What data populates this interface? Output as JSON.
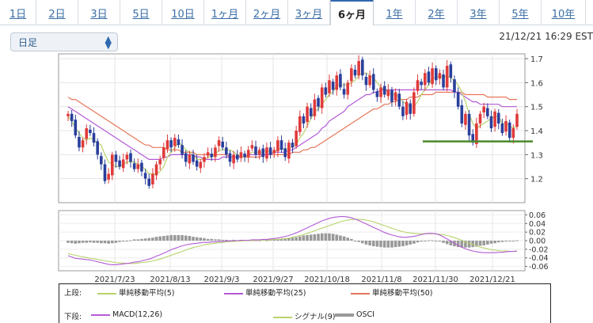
{
  "tabs": [
    {
      "label": "1日"
    },
    {
      "label": "2日"
    },
    {
      "label": "3日"
    },
    {
      "label": "5日"
    },
    {
      "label": "10日"
    },
    {
      "label": "1ヶ月"
    },
    {
      "label": "2ヶ月"
    },
    {
      "label": "3ヶ月"
    },
    {
      "label": "6ヶ月",
      "active": true
    },
    {
      "label": "1年"
    },
    {
      "label": "2年"
    },
    {
      "label": "3年"
    },
    {
      "label": "5年"
    },
    {
      "label": "10年"
    }
  ],
  "select": {
    "value": "日足"
  },
  "timestamp": "21/12/21 16:29 EST",
  "colors": {
    "up": "#e03a3a",
    "down": "#2a3f9c",
    "sma5": "#b7d36a",
    "sma25": "#b35ad6",
    "sma50": "#e6765a",
    "macd": "#b35ad6",
    "signal": "#b7d36a",
    "osci": "#999999",
    "support": "#4a8a2a"
  },
  "chart_data": [
    {
      "type": "candlestick",
      "x_labels": [
        "2021/7/23",
        "2021/8/13",
        "2021/9/3",
        "2021/9/27",
        "2021/10/18",
        "2021/11/8",
        "2021/11/30",
        "2021/12/21"
      ],
      "ylim": [
        1.1,
        1.72
      ],
      "yticks": [
        "1.7",
        "1.6",
        "1.5",
        "1.4",
        "1.3",
        "1.2"
      ],
      "grid": true,
      "support_line": 1.355,
      "closes": [
        1.47,
        1.44,
        1.38,
        1.33,
        1.36,
        1.41,
        1.39,
        1.35,
        1.3,
        1.26,
        1.19,
        1.22,
        1.3,
        1.27,
        1.25,
        1.28,
        1.3,
        1.27,
        1.24,
        1.26,
        1.23,
        1.2,
        1.17,
        1.22,
        1.26,
        1.28,
        1.33,
        1.36,
        1.33,
        1.37,
        1.34,
        1.3,
        1.27,
        1.3,
        1.27,
        1.25,
        1.27,
        1.29,
        1.31,
        1.29,
        1.33,
        1.36,
        1.33,
        1.3,
        1.27,
        1.3,
        1.28,
        1.31,
        1.29,
        1.32,
        1.34,
        1.3,
        1.32,
        1.29,
        1.33,
        1.3,
        1.32,
        1.36,
        1.32,
        1.29,
        1.35,
        1.33,
        1.4,
        1.46,
        1.43,
        1.5,
        1.46,
        1.53,
        1.5,
        1.58,
        1.55,
        1.61,
        1.57,
        1.63,
        1.58,
        1.55,
        1.6,
        1.66,
        1.63,
        1.69,
        1.63,
        1.59,
        1.63,
        1.57,
        1.54,
        1.58,
        1.55,
        1.57,
        1.52,
        1.56,
        1.5,
        1.46,
        1.52,
        1.47,
        1.56,
        1.61,
        1.59,
        1.64,
        1.6,
        1.66,
        1.61,
        1.64,
        1.58,
        1.67,
        1.62,
        1.56,
        1.5,
        1.43,
        1.47,
        1.38,
        1.35,
        1.43,
        1.47,
        1.5,
        1.46,
        1.41,
        1.48,
        1.43,
        1.39,
        1.44,
        1.37,
        1.41,
        1.47
      ],
      "sma5": [
        1.46,
        1.44,
        1.41,
        1.39,
        1.37,
        1.36,
        1.37,
        1.36,
        1.35,
        1.34,
        1.3,
        1.27,
        1.26,
        1.25,
        1.25,
        1.26,
        1.27,
        1.27,
        1.27,
        1.26,
        1.25,
        1.24,
        1.22,
        1.22,
        1.22,
        1.23,
        1.25,
        1.29,
        1.31,
        1.33,
        1.35,
        1.34,
        1.32,
        1.31,
        1.3,
        1.28,
        1.28,
        1.28,
        1.29,
        1.29,
        1.3,
        1.32,
        1.32,
        1.32,
        1.32,
        1.31,
        1.3,
        1.29,
        1.29,
        1.3,
        1.31,
        1.31,
        1.31,
        1.31,
        1.32,
        1.31,
        1.31,
        1.32,
        1.33,
        1.32,
        1.33,
        1.33,
        1.34,
        1.37,
        1.39,
        1.42,
        1.45,
        1.48,
        1.49,
        1.51,
        1.53,
        1.55,
        1.56,
        1.59,
        1.59,
        1.59,
        1.59,
        1.6,
        1.61,
        1.63,
        1.64,
        1.64,
        1.63,
        1.62,
        1.6,
        1.58,
        1.57,
        1.56,
        1.55,
        1.55,
        1.54,
        1.52,
        1.51,
        1.5,
        1.5,
        1.52,
        1.55,
        1.57,
        1.59,
        1.62,
        1.62,
        1.63,
        1.62,
        1.63,
        1.62,
        1.61,
        1.59,
        1.56,
        1.52,
        1.47,
        1.43,
        1.41,
        1.42,
        1.43,
        1.44,
        1.45,
        1.46,
        1.46,
        1.43,
        1.43,
        1.42,
        1.41,
        1.42
      ],
      "sma25": [
        1.5,
        1.49,
        1.48,
        1.47,
        1.46,
        1.45,
        1.44,
        1.43,
        1.42,
        1.41,
        1.4,
        1.39,
        1.38,
        1.37,
        1.36,
        1.35,
        1.34,
        1.33,
        1.32,
        1.31,
        1.3,
        1.29,
        1.28,
        1.28,
        1.28,
        1.28,
        1.29,
        1.29,
        1.3,
        1.3,
        1.3,
        1.3,
        1.3,
        1.3,
        1.3,
        1.29,
        1.29,
        1.28,
        1.28,
        1.28,
        1.28,
        1.28,
        1.29,
        1.29,
        1.29,
        1.29,
        1.29,
        1.29,
        1.29,
        1.3,
        1.3,
        1.3,
        1.3,
        1.3,
        1.3,
        1.3,
        1.31,
        1.31,
        1.31,
        1.31,
        1.32,
        1.32,
        1.33,
        1.34,
        1.35,
        1.36,
        1.37,
        1.38,
        1.39,
        1.41,
        1.42,
        1.44,
        1.45,
        1.46,
        1.47,
        1.48,
        1.5,
        1.51,
        1.52,
        1.53,
        1.54,
        1.55,
        1.55,
        1.56,
        1.56,
        1.57,
        1.57,
        1.57,
        1.57,
        1.57,
        1.57,
        1.57,
        1.57,
        1.57,
        1.57,
        1.57,
        1.57,
        1.57,
        1.57,
        1.57,
        1.57,
        1.57,
        1.57,
        1.57,
        1.57,
        1.56,
        1.56,
        1.55,
        1.54,
        1.53,
        1.52,
        1.52,
        1.51,
        1.51,
        1.51,
        1.51,
        1.51,
        1.51,
        1.5,
        1.5,
        1.5,
        1.5,
        1.5
      ],
      "sma50": [
        1.54,
        1.53,
        1.53,
        1.52,
        1.51,
        1.5,
        1.49,
        1.48,
        1.47,
        1.46,
        1.45,
        1.44,
        1.43,
        1.42,
        1.41,
        1.4,
        1.39,
        1.38,
        1.37,
        1.36,
        1.35,
        1.34,
        1.34,
        1.33,
        1.33,
        1.33,
        1.33,
        1.32,
        1.32,
        1.32,
        1.32,
        1.31,
        1.31,
        1.31,
        1.31,
        1.3,
        1.3,
        1.3,
        1.3,
        1.3,
        1.3,
        1.3,
        1.3,
        1.3,
        1.29,
        1.29,
        1.29,
        1.29,
        1.29,
        1.29,
        1.29,
        1.29,
        1.29,
        1.3,
        1.3,
        1.3,
        1.3,
        1.3,
        1.3,
        1.3,
        1.3,
        1.31,
        1.31,
        1.31,
        1.32,
        1.32,
        1.33,
        1.33,
        1.34,
        1.35,
        1.36,
        1.37,
        1.38,
        1.39,
        1.4,
        1.41,
        1.42,
        1.43,
        1.44,
        1.45,
        1.46,
        1.47,
        1.48,
        1.49,
        1.49,
        1.5,
        1.51,
        1.51,
        1.52,
        1.52,
        1.53,
        1.53,
        1.53,
        1.54,
        1.54,
        1.54,
        1.55,
        1.55,
        1.55,
        1.55,
        1.56,
        1.56,
        1.56,
        1.56,
        1.56,
        1.56,
        1.56,
        1.56,
        1.55,
        1.55,
        1.55,
        1.55,
        1.55,
        1.55,
        1.54,
        1.54,
        1.54,
        1.54,
        1.54,
        1.54,
        1.53,
        1.53,
        1.53
      ]
    },
    {
      "type": "macd",
      "ylim": [
        -0.07,
        0.07
      ],
      "yticks": [
        "0.06",
        "0.04",
        "0.02",
        "0.00",
        "-0.02",
        "-0.04",
        "-0.06"
      ],
      "macd": [
        -0.035,
        -0.038,
        -0.041,
        -0.042,
        -0.043,
        -0.044,
        -0.045,
        -0.047,
        -0.049,
        -0.051,
        -0.053,
        -0.055,
        -0.056,
        -0.056,
        -0.055,
        -0.054,
        -0.053,
        -0.052,
        -0.05,
        -0.049,
        -0.047,
        -0.045,
        -0.043,
        -0.04,
        -0.036,
        -0.033,
        -0.029,
        -0.025,
        -0.021,
        -0.018,
        -0.015,
        -0.012,
        -0.01,
        -0.008,
        -0.007,
        -0.006,
        -0.005,
        -0.004,
        -0.004,
        -0.003,
        -0.003,
        -0.002,
        -0.002,
        -0.001,
        -0.001,
        0.0,
        0.0,
        0.001,
        0.001,
        0.001,
        0.002,
        0.002,
        0.002,
        0.003,
        0.003,
        0.004,
        0.005,
        0.006,
        0.008,
        0.01,
        0.012,
        0.015,
        0.018,
        0.022,
        0.026,
        0.03,
        0.034,
        0.038,
        0.042,
        0.046,
        0.049,
        0.052,
        0.054,
        0.055,
        0.056,
        0.056,
        0.055,
        0.053,
        0.05,
        0.047,
        0.043,
        0.039,
        0.035,
        0.031,
        0.027,
        0.023,
        0.019,
        0.016,
        0.013,
        0.011,
        0.009,
        0.008,
        0.008,
        0.009,
        0.01,
        0.012,
        0.014,
        0.016,
        0.017,
        0.017,
        0.016,
        0.013,
        0.009,
        0.004,
        -0.001,
        -0.006,
        -0.011,
        -0.015,
        -0.019,
        -0.022,
        -0.024,
        -0.026,
        -0.027,
        -0.028,
        -0.028,
        -0.028,
        -0.028,
        -0.027,
        -0.027,
        -0.026,
        -0.025,
        -0.025,
        -0.024
      ],
      "signal": [
        -0.03,
        -0.032,
        -0.034,
        -0.036,
        -0.038,
        -0.039,
        -0.041,
        -0.042,
        -0.044,
        -0.045,
        -0.047,
        -0.048,
        -0.05,
        -0.051,
        -0.052,
        -0.052,
        -0.053,
        -0.053,
        -0.053,
        -0.052,
        -0.051,
        -0.05,
        -0.049,
        -0.047,
        -0.045,
        -0.043,
        -0.04,
        -0.037,
        -0.034,
        -0.031,
        -0.028,
        -0.025,
        -0.022,
        -0.019,
        -0.016,
        -0.014,
        -0.012,
        -0.01,
        -0.008,
        -0.007,
        -0.006,
        -0.005,
        -0.004,
        -0.003,
        -0.002,
        -0.002,
        -0.001,
        -0.001,
        0.0,
        0.0,
        0.0,
        0.001,
        0.001,
        0.001,
        0.002,
        0.002,
        0.003,
        0.003,
        0.004,
        0.005,
        0.006,
        0.008,
        0.01,
        0.012,
        0.014,
        0.017,
        0.02,
        0.023,
        0.026,
        0.029,
        0.032,
        0.035,
        0.038,
        0.041,
        0.044,
        0.046,
        0.048,
        0.049,
        0.05,
        0.05,
        0.049,
        0.048,
        0.046,
        0.044,
        0.041,
        0.038,
        0.035,
        0.032,
        0.029,
        0.026,
        0.023,
        0.021,
        0.019,
        0.018,
        0.017,
        0.016,
        0.016,
        0.016,
        0.016,
        0.016,
        0.016,
        0.015,
        0.014,
        0.012,
        0.01,
        0.007,
        0.004,
        0.001,
        -0.003,
        -0.006,
        -0.009,
        -0.012,
        -0.015,
        -0.017,
        -0.019,
        -0.021,
        -0.022,
        -0.023,
        -0.024,
        -0.024,
        -0.025,
        -0.025,
        -0.025
      ]
    }
  ],
  "legend": {
    "upper_head": "上段:",
    "lower_head": "下段:",
    "upper_items": [
      {
        "label": "単純移動平均(5)",
        "color": "#b7d36a"
      },
      {
        "label": "単純移動平均(25)",
        "color": "#b35ad6"
      },
      {
        "label": "単純移動平均(50)",
        "color": "#e6765a"
      }
    ],
    "lower_items": [
      {
        "label": "MACD(12,26)",
        "color": "#b35ad6"
      },
      {
        "label": "シグナル(9)",
        "color": "#b7d36a"
      },
      {
        "label": "OSCI",
        "color": "#999999"
      }
    ]
  }
}
